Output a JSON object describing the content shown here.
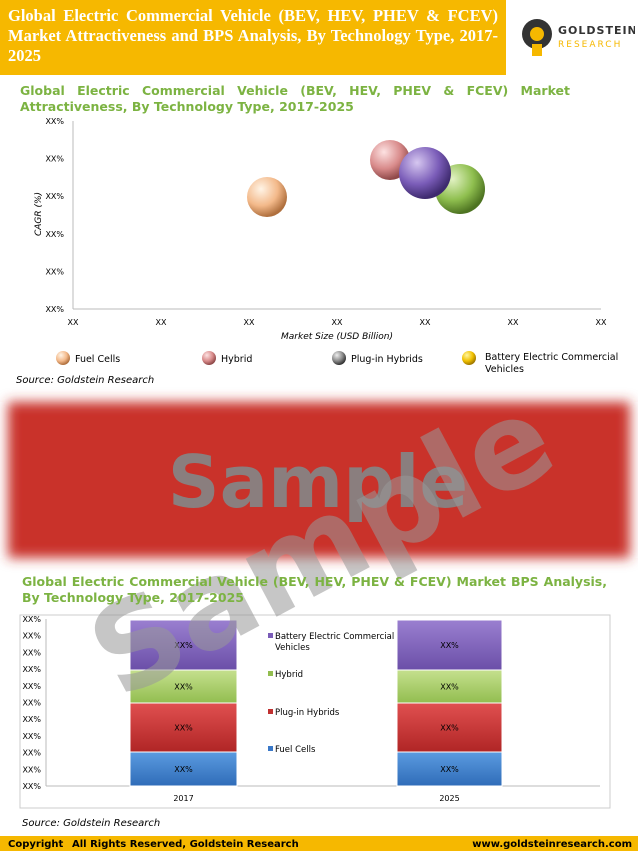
{
  "header": {
    "title": "Global Electric Commercial Vehicle (BEV, HEV, PHEV & FCEV) Market  Attractiveness and BPS Analysis, By Technology Type, 2017-2025",
    "logo_name": "GOLDSTEIN",
    "logo_sub": "RESEARCH"
  },
  "bubble_chart": {
    "title": "Global Electric Commercial Vehicle (BEV, HEV, PHEV & FCEV) Market Attractiveness, By Technology Type, 2017-2025",
    "y_ticks": [
      "XX%",
      "XX%",
      "XX%",
      "XX%",
      "XX%",
      "XX%"
    ],
    "x_ticks": [
      "XX",
      "XX",
      "XX",
      "XX",
      "XX",
      "XX",
      "XX"
    ],
    "x_label": "Market Size (USD Billion)",
    "y_label": "CAGR (%)",
    "legend": [
      "Fuel Cells",
      "Hybrid",
      "Plug-in Hybrids",
      "Battery Electric Commercial Vehicles"
    ],
    "source": "Source: Goldstein Research"
  },
  "watermark": "Sample",
  "bar_chart": {
    "title": "Global Electric Commercial Vehicle (BEV, HEV, PHEV & FCEV) Market BPS Analysis, By Technology Type, 2017-2025",
    "y_ticks": [
      "XX%",
      "XX%",
      "XX%",
      "XX%",
      "XX%",
      "XX%",
      "XX%",
      "XX%",
      "XX%",
      "XX%",
      "XX%"
    ],
    "bars": [
      {
        "category": "2017",
        "labels": [
          "XX%",
          "XX%",
          "XX%",
          "XX%"
        ]
      },
      {
        "category": "2025",
        "labels": [
          "XX%",
          "XX%",
          "XX%",
          "XX%"
        ]
      }
    ],
    "legend": [
      "Battery Electric Commercial Vehicles",
      "Hybrid",
      "Plug-in Hybrids",
      "Fuel Cells"
    ],
    "source": "Source: Goldstein Research"
  },
  "footer": {
    "copyright": "Copyright",
    "rights": "All Rights Reserved, Goldstein Research",
    "website": "www.goldsteinresearch.com"
  }
}
